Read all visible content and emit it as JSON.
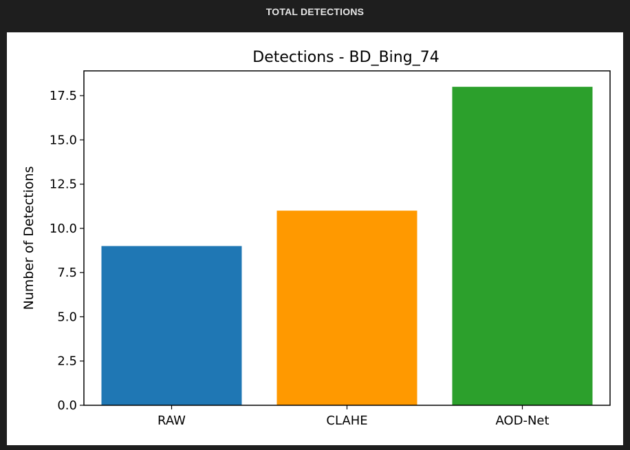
{
  "header": {
    "title": "TOTAL DETECTIONS"
  },
  "chart_data": {
    "type": "bar",
    "title": "Detections - BD_Bing_74",
    "xlabel": "",
    "ylabel": "Number of Detections",
    "categories": [
      "RAW",
      "CLAHE",
      "AOD-Net"
    ],
    "values": [
      9,
      11,
      18
    ],
    "colors": [
      "#1f77b4",
      "#ff9900",
      "#2ca02c"
    ],
    "ylim": [
      0,
      18.9
    ],
    "yticks": [
      0.0,
      2.5,
      5.0,
      7.5,
      10.0,
      12.5,
      15.0,
      17.5
    ],
    "ytick_labels": [
      "0.0",
      "2.5",
      "5.0",
      "7.5",
      "10.0",
      "12.5",
      "15.0",
      "17.5"
    ],
    "grid": false,
    "legend": "none"
  }
}
